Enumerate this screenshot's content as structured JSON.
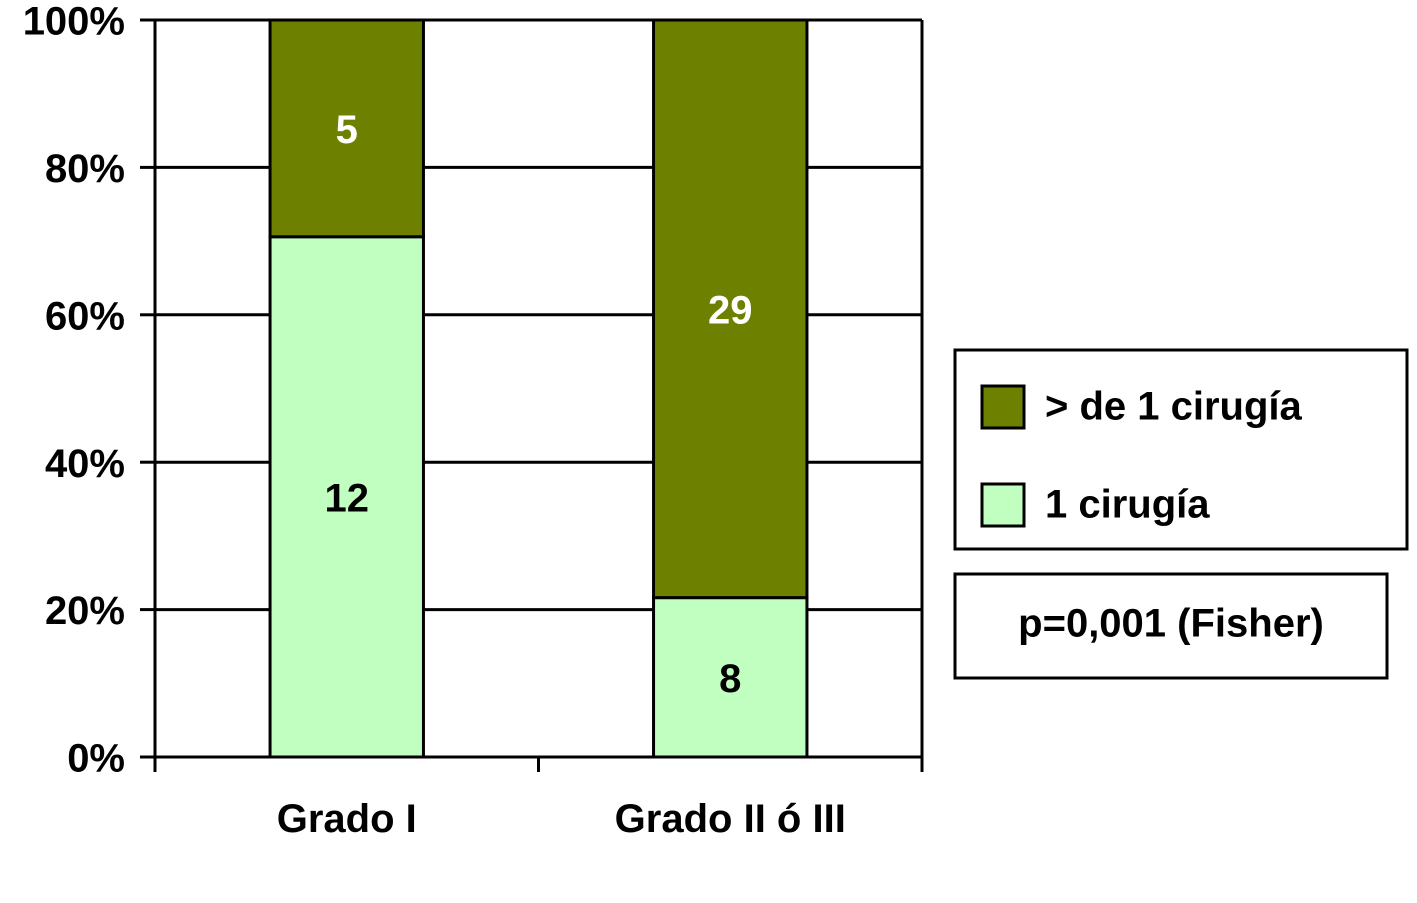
{
  "chart_data": {
    "type": "bar",
    "stacking": "percent",
    "categories": [
      "Grado I",
      "Grado II ó III"
    ],
    "series": [
      {
        "name": "1 cirugía",
        "color": "#c0ffc0",
        "values": [
          12,
          8
        ]
      },
      {
        "name": "> de 1 cirugía",
        "color": "#6e8000",
        "values": [
          5,
          29
        ]
      }
    ],
    "ylim": [
      0,
      100
    ],
    "yticks": [
      {
        "value": 0,
        "label": "0%"
      },
      {
        "value": 20,
        "label": "20%"
      },
      {
        "value": 40,
        "label": "40%"
      },
      {
        "value": 60,
        "label": "60%"
      },
      {
        "value": 80,
        "label": "80%"
      },
      {
        "value": 100,
        "label": "100%"
      }
    ],
    "grid": true,
    "legend": "right",
    "annotation": "p=0,001 (Fisher)"
  }
}
